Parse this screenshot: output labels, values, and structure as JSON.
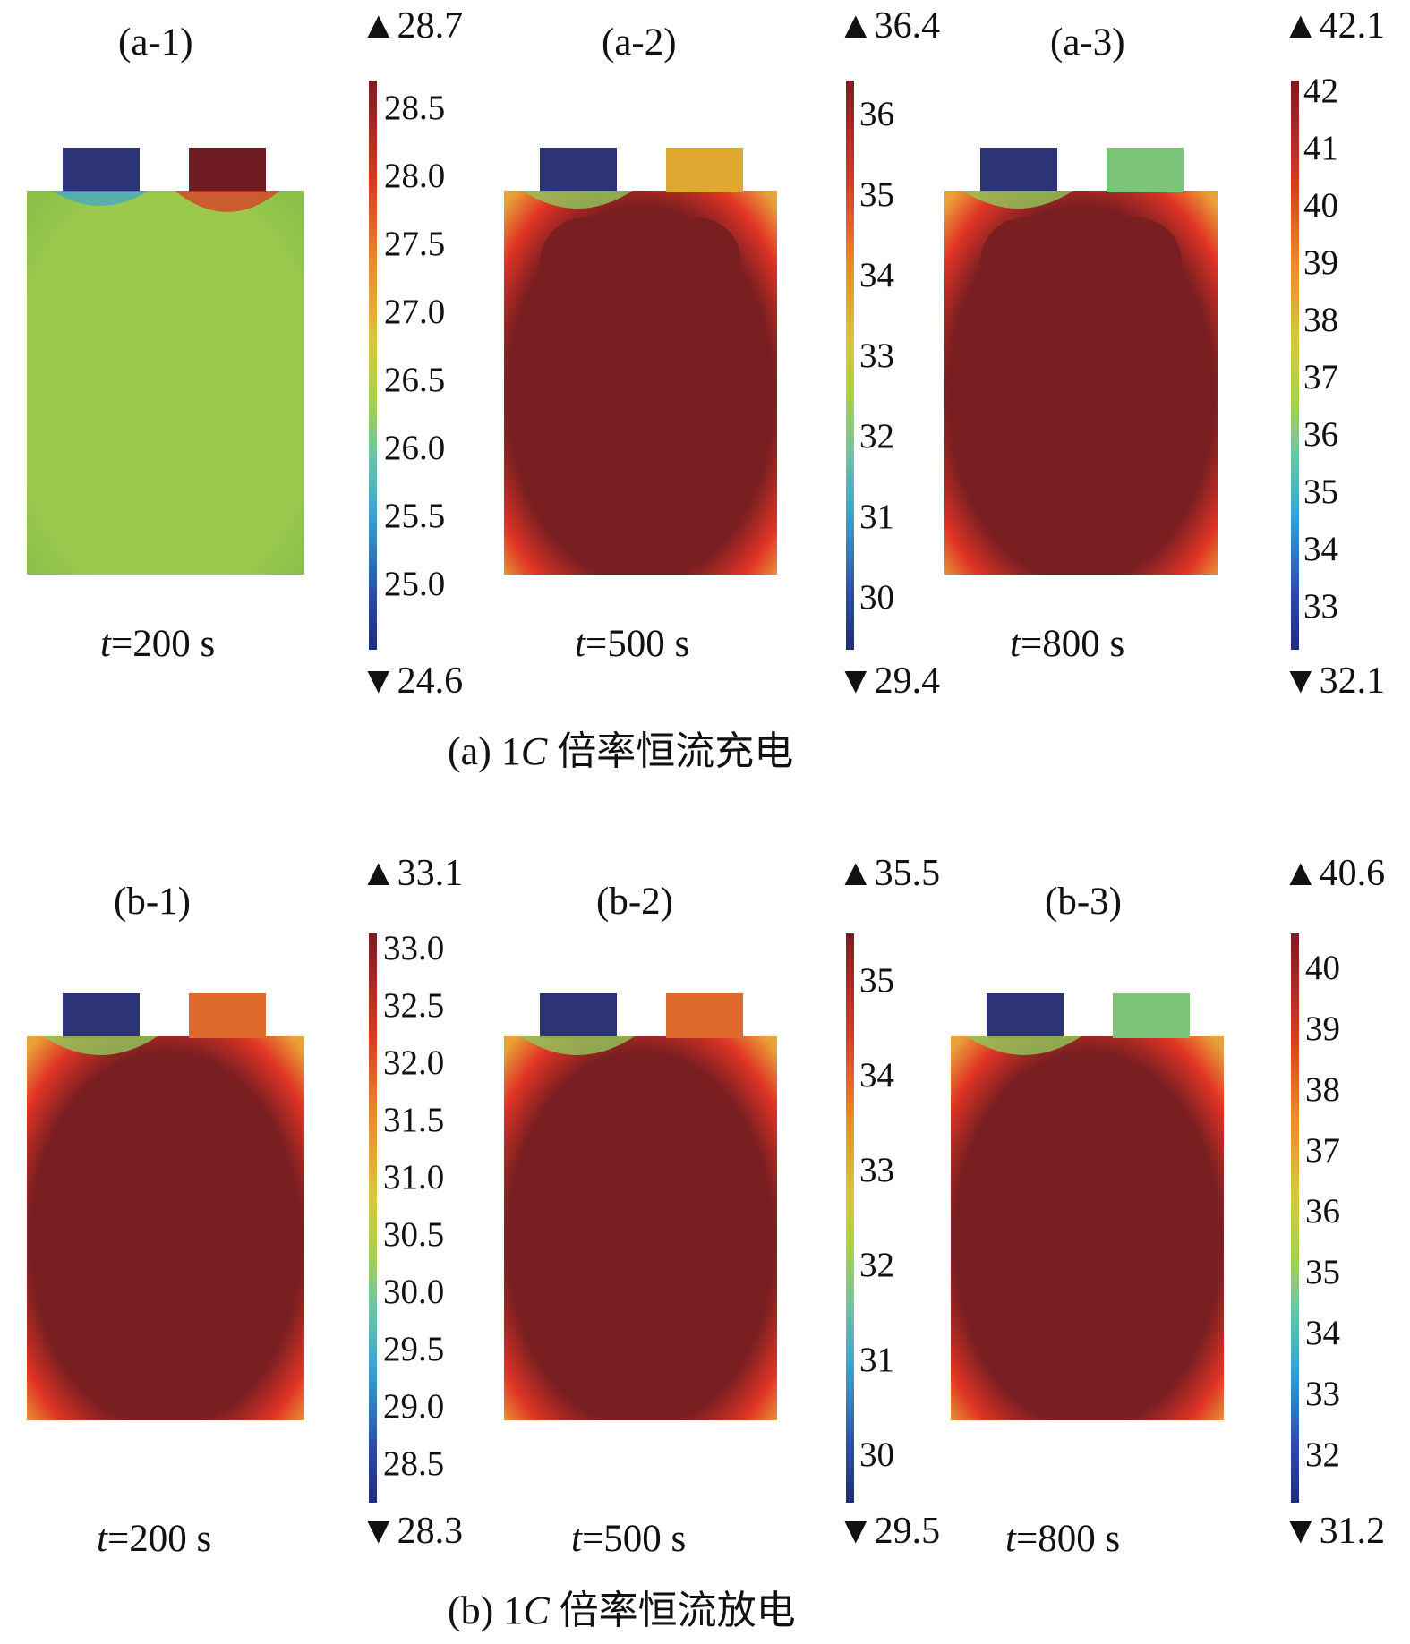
{
  "caption_a": {
    "prefix": "(a) 1",
    "italic": "C",
    "suffix": " 倍率恒流充电"
  },
  "caption_b": {
    "prefix": "(b) 1",
    "italic": "C",
    "suffix": " 倍率恒流放电"
  },
  "panels": [
    {
      "label": "(a-1)",
      "time_var": "t",
      "time_text": "=200 s",
      "max_arrow": "▲",
      "max": "28.7",
      "min_arrow": "▼",
      "min": "24.6",
      "ticks": [
        "28.5",
        "28.0",
        "27.5",
        "27.0",
        "26.5",
        "26.0",
        "25.5",
        "25.0"
      ],
      "tab_colors": [
        "#2c3477",
        "#6e1c22"
      ],
      "body_center": "#9bc94c",
      "body_edge": "#8ac04a"
    },
    {
      "label": "(a-2)",
      "time_var": "t",
      "time_text": "=500 s",
      "max_arrow": "▲",
      "max": "36.4",
      "min_arrow": "▼",
      "min": "29.4",
      "ticks": [
        "36",
        "35",
        "34",
        "33",
        "32",
        "31",
        "30"
      ],
      "tab_colors": [
        "#2c3477",
        "#e0a831"
      ],
      "body_center": "#7a1f21",
      "body_edge": "#e03425"
    },
    {
      "label": "(a-3)",
      "time_var": "t",
      "time_text": "=800 s",
      "max_arrow": "▲",
      "max": "42.1",
      "min_arrow": "▼",
      "min": "32.1",
      "ticks": [
        "42",
        "41",
        "40",
        "39",
        "38",
        "37",
        "36",
        "35",
        "34",
        "33"
      ],
      "tab_colors": [
        "#2c3477",
        "#7cc47a"
      ],
      "body_center": "#7a1f21",
      "body_edge": "#e03425"
    },
    {
      "label": "(b-1)",
      "time_var": "t",
      "time_text": "=200 s",
      "max_arrow": "▲",
      "max": "33.1",
      "min_arrow": "▼",
      "min": "28.3",
      "ticks": [
        "33.0",
        "32.5",
        "32.0",
        "31.5",
        "31.0",
        "30.5",
        "30.0",
        "29.5",
        "29.0",
        "28.5"
      ],
      "tab_colors": [
        "#2c3477",
        "#df6a2b"
      ],
      "body_center": "#7a1f21",
      "body_edge": "#e03425"
    },
    {
      "label": "(b-2)",
      "time_var": "t",
      "time_text": "=500 s",
      "max_arrow": "▲",
      "max": "35.5",
      "min_arrow": "▼",
      "min": "29.5",
      "ticks": [
        "35",
        "34",
        "33",
        "32",
        "31",
        "30"
      ],
      "tab_colors": [
        "#2c3477",
        "#df6a2b"
      ],
      "body_center": "#7a1f21",
      "body_edge": "#e03425"
    },
    {
      "label": "(b-3)",
      "time_var": "t",
      "time_text": "=800 s",
      "max_arrow": "▲",
      "max": "40.6",
      "min_arrow": "▼",
      "min": "31.2",
      "ticks": [
        "40",
        "39",
        "38",
        "37",
        "36",
        "35",
        "34",
        "33",
        "32"
      ],
      "tab_colors": [
        "#2c3477",
        "#7cc47a"
      ],
      "body_center": "#7a1f21",
      "body_edge": "#e03425"
    }
  ]
}
